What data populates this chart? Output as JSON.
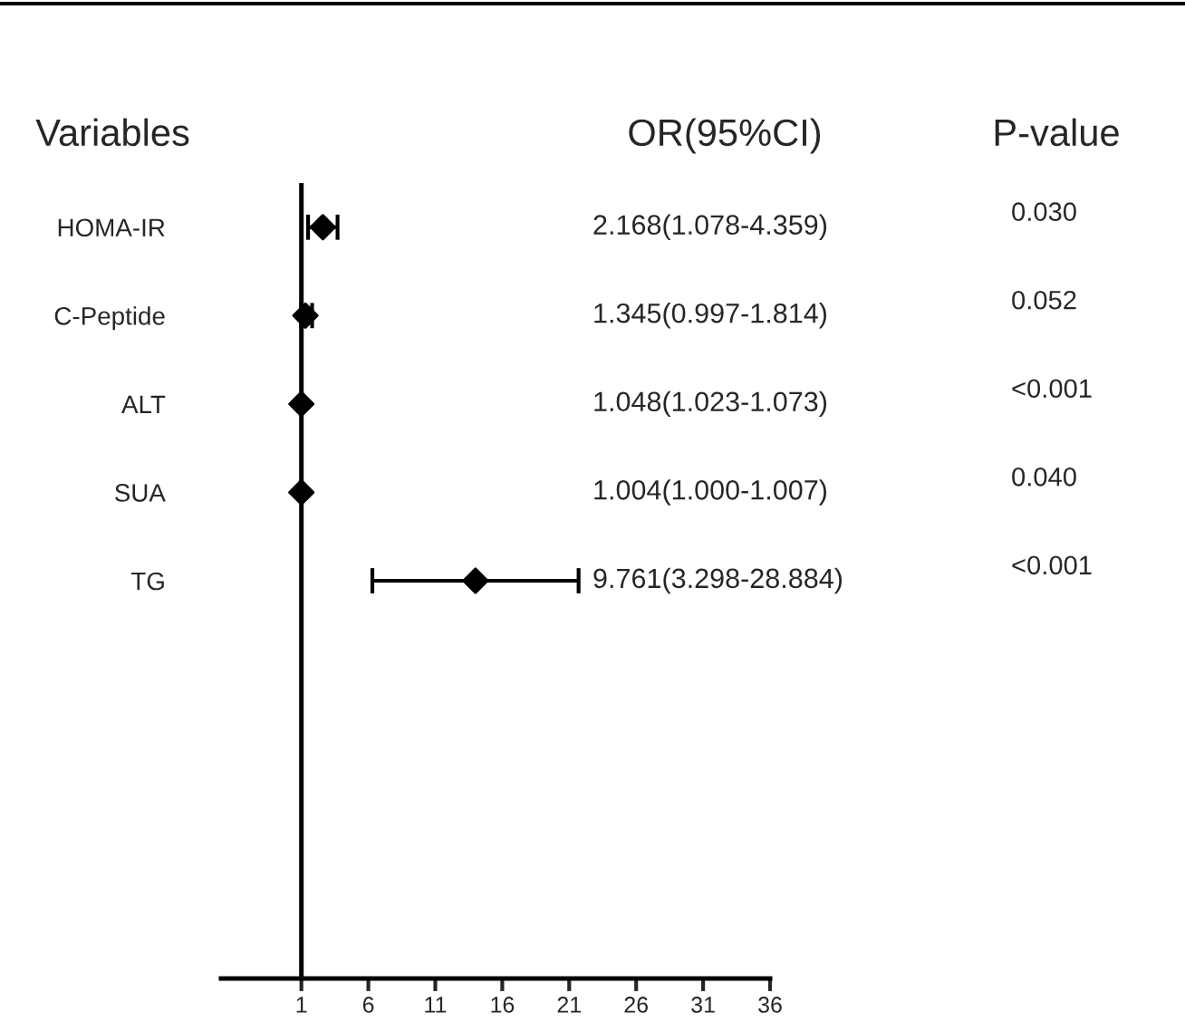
{
  "chart_data": {
    "type": "scatter",
    "orientation": "horizontal",
    "categories": [
      "HOMA-IR",
      "C-Peptide",
      "ALT",
      "SUA",
      "TG",
      null,
      null,
      null,
      null
    ],
    "values": [
      2.6,
      1.3,
      1.0,
      1.0,
      14.0,
      null,
      null,
      null,
      null
    ],
    "errors": [
      [
        1.5,
        3.7
      ],
      [
        1.0,
        1.8
      ],
      null,
      null,
      [
        6.3,
        21.7
      ],
      null,
      null,
      null,
      null
    ],
    "color": "#000000",
    "marker": "diamond",
    "xlim": [
      -5,
      36
    ],
    "xticks": [
      1,
      6,
      11,
      16,
      21,
      26,
      31,
      36
    ],
    "ref_lines": [
      {
        "axis": "x",
        "value": 1
      }
    ],
    "annotations": [
      "Variables",
      "OR(95%CI)",
      "P-value",
      "2.168(1.078-4.359)",
      "1.345(0.997-1.814)",
      "1.048(1.023-1.073)",
      "1.004(1.000-1.007)",
      "9.761(3.298-28.884)",
      "0.030",
      "0.052",
      "<0.001",
      "0.040",
      "<0.001"
    ],
    "grid": false,
    "legend": false
  }
}
